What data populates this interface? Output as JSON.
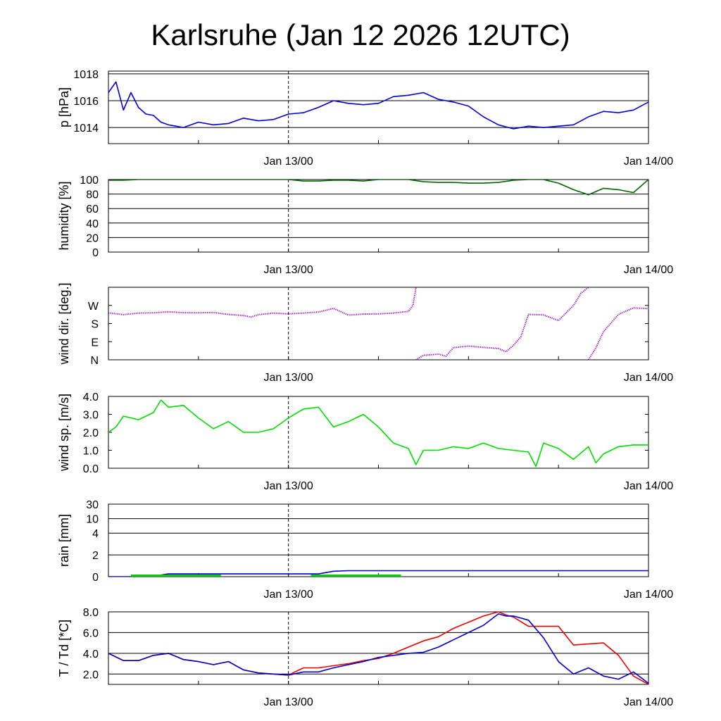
{
  "title": "Karlsruhe (Jan 12 2026 12UTC)",
  "chart_data": [
    {
      "id": "pressure",
      "type": "line",
      "ylabel": "p [hPa]",
      "ylim": [
        1012.8,
        1018.2
      ],
      "yticks": [
        {
          "value": 1014,
          "label": "1014"
        },
        {
          "value": 1016,
          "label": "1016"
        },
        {
          "value": 1018,
          "label": "1018"
        }
      ],
      "grid": true,
      "xticks": [
        "Jan 13/00",
        "Jan 14/00"
      ],
      "series": [
        {
          "color": "#0000dd",
          "x": [
            0,
            0.5,
            1,
            1.5,
            2,
            2.5,
            3,
            3.5,
            4,
            4.5,
            5,
            6,
            7,
            8,
            9,
            10,
            11,
            12,
            13,
            14,
            15,
            16,
            17,
            18,
            19,
            20,
            21,
            22,
            23,
            24,
            25,
            26,
            27,
            28,
            29,
            30,
            31,
            32,
            33,
            34,
            35,
            36
          ],
          "y": [
            1016.6,
            1017.4,
            1015.3,
            1016.6,
            1015.5,
            1015.0,
            1014.9,
            1014.4,
            1014.2,
            1014.1,
            1014.0,
            1014.4,
            1014.2,
            1014.3,
            1014.7,
            1014.5,
            1014.6,
            1015.0,
            1015.1,
            1015.5,
            1016.0,
            1015.8,
            1015.7,
            1015.8,
            1016.3,
            1016.4,
            1016.6,
            1016.1,
            1015.9,
            1015.6,
            1014.8,
            1014.2,
            1013.9,
            1014.1,
            1014.0,
            1014.1,
            1014.2,
            1014.8,
            1015.2,
            1015.1,
            1015.3,
            1015.9
          ]
        }
      ]
    },
    {
      "id": "humidity",
      "type": "line",
      "ylabel": "humidity [%]",
      "ylim": [
        0,
        100
      ],
      "yticks": [
        {
          "value": 0,
          "label": "0"
        },
        {
          "value": 20,
          "label": "20"
        },
        {
          "value": 40,
          "label": "40"
        },
        {
          "value": 60,
          "label": "60"
        },
        {
          "value": 80,
          "label": "80"
        },
        {
          "value": 100,
          "label": "100"
        }
      ],
      "grid": true,
      "xticks": [
        "Jan 13/00",
        "Jan 14/00"
      ],
      "series": [
        {
          "color": "#006600",
          "x": [
            0,
            1,
            2,
            3,
            12,
            13,
            14,
            15,
            16,
            17,
            18,
            19,
            20,
            21,
            22,
            23,
            24,
            25,
            26,
            27,
            28,
            29,
            30,
            31,
            32,
            33,
            34,
            35,
            36
          ],
          "y": [
            99,
            99,
            100,
            100,
            100,
            98,
            98,
            99,
            99,
            98,
            100,
            100,
            100,
            97,
            96,
            96,
            95,
            95,
            96,
            99,
            100,
            100,
            95,
            86,
            79,
            88,
            86,
            82,
            100
          ]
        }
      ]
    },
    {
      "id": "wind-direction",
      "type": "scatter",
      "ylabel": "wind dir. [deg.]",
      "ylim": [
        0,
        360
      ],
      "yticks": [
        {
          "value": 0,
          "label": "N"
        },
        {
          "value": 90,
          "label": "E"
        },
        {
          "value": 180,
          "label": "S"
        },
        {
          "value": 270,
          "label": "W"
        }
      ],
      "grid": false,
      "xticks": [
        "Jan 13/00",
        "Jan 14/00"
      ],
      "series": [
        {
          "color": "#9900cc",
          "segments": [
            {
              "x": [
                0,
                1,
                2,
                3,
                4,
                5,
                6,
                7,
                8,
                9,
                9.5,
                10,
                11,
                12,
                13,
                14,
                15,
                16,
                17,
                18,
                19,
                20,
                20.3,
                20.5
              ],
              "y": [
                233,
                224,
                232,
                233,
                238,
                234,
                233,
                235,
                225,
                220,
                212,
                224,
                232,
                228,
                232,
                237,
                255,
                222,
                227,
                228,
                232,
                240,
                270,
                360
              ]
            },
            {
              "x": [
                20.5,
                21,
                22,
                22.5,
                23,
                24,
                25,
                26,
                26.5,
                27,
                27.5,
                27.7,
                28,
                29,
                30,
                31,
                31.5,
                32
              ],
              "y": [
                0,
                22,
                28,
                18,
                60,
                68,
                62,
                56,
                40,
                72,
                115,
                160,
                225,
                223,
                195,
                270,
                330,
                360
              ]
            },
            {
              "x": [
                32,
                32.5,
                33,
                34,
                35,
                36
              ],
              "y": [
                0,
                60,
                140,
                225,
                258,
                254
              ]
            }
          ]
        }
      ]
    },
    {
      "id": "wind-speed",
      "type": "line",
      "ylabel": "wind sp. [m/s]",
      "ylim": [
        0,
        4
      ],
      "yticks": [
        {
          "value": 0,
          "label": "0.0"
        },
        {
          "value": 1,
          "label": "1.0"
        },
        {
          "value": 2,
          "label": "2.0"
        },
        {
          "value": 3,
          "label": "3.0"
        },
        {
          "value": 4,
          "label": "4.0"
        }
      ],
      "grid": false,
      "xticks": [
        "Jan 13/00",
        "Jan 14/00"
      ],
      "series": [
        {
          "color": "#00dd00",
          "x": [
            0,
            0.5,
            1,
            2,
            3,
            3.5,
            4,
            5,
            6,
            7,
            8,
            9,
            10,
            11,
            12,
            13,
            14,
            15,
            16,
            17,
            18,
            19,
            20,
            20.5,
            21,
            22,
            23,
            24,
            25,
            26,
            27,
            28,
            28.5,
            29,
            30,
            31,
            32,
            32.5,
            33,
            34,
            35,
            36
          ],
          "y": [
            2.0,
            2.3,
            2.9,
            2.7,
            3.1,
            3.8,
            3.4,
            3.5,
            2.8,
            2.2,
            2.6,
            2.0,
            2.0,
            2.2,
            2.8,
            3.3,
            3.4,
            2.3,
            2.6,
            3.0,
            2.3,
            1.4,
            1.1,
            0.2,
            1.0,
            1.0,
            1.2,
            1.1,
            1.4,
            1.1,
            1.0,
            0.9,
            0.1,
            1.4,
            1.1,
            0.5,
            1.2,
            0.3,
            0.8,
            1.2,
            1.3,
            1.3
          ]
        }
      ]
    },
    {
      "id": "rain",
      "type": "line",
      "ylabel": "rain [mm]",
      "ylim": [
        0,
        30
      ],
      "yscale": "nonlinear",
      "yticks": [
        {
          "value": 0,
          "label": "0"
        },
        {
          "value": 2,
          "label": "2"
        },
        {
          "value": 4,
          "label": "4"
        },
        {
          "value": 10,
          "label": "10"
        },
        {
          "value": 30,
          "label": "30"
        }
      ],
      "grid": true,
      "xticks": [
        "Jan 13/00",
        "Jan 14/00"
      ],
      "series": [
        {
          "color": "#0000cc",
          "x": [
            0,
            1.5,
            2.5,
            3.5,
            4,
            14,
            15,
            16,
            36
          ],
          "y": [
            0,
            0,
            0.05,
            0.15,
            0.25,
            0.25,
            0.5,
            0.55,
            0.55
          ]
        },
        {
          "color": "#00cc00",
          "x": [
            1.5,
            7.5,
            13.5,
            19.5
          ],
          "y": [
            0.04,
            0.04,
            0.04,
            0.04
          ],
          "style": "bars"
        }
      ]
    },
    {
      "id": "temperature",
      "type": "line",
      "ylabel": "T / Td [*C]",
      "ylim": [
        1.0,
        8.0
      ],
      "yticks": [
        {
          "value": 2,
          "label": "2.0"
        },
        {
          "value": 4,
          "label": "4.0"
        },
        {
          "value": 6,
          "label": "6.0"
        },
        {
          "value": 8,
          "label": "8.0"
        }
      ],
      "grid": true,
      "xticks": [
        "Jan 13/00",
        "Jan 14/00"
      ],
      "series": [
        {
          "color": "#ee0000",
          "x": [
            0,
            1,
            2,
            3,
            4,
            5,
            6,
            7,
            8,
            9,
            10,
            11,
            12,
            13,
            14,
            15,
            16,
            17,
            18,
            19,
            20,
            21,
            22,
            23,
            24,
            25,
            26,
            26.5,
            27,
            28,
            29,
            30,
            31,
            32,
            33,
            34,
            35,
            36
          ],
          "y": [
            4.0,
            3.3,
            3.3,
            3.8,
            4.0,
            3.4,
            3.2,
            2.9,
            3.2,
            2.4,
            2.1,
            2.0,
            1.9,
            2.6,
            2.6,
            2.8,
            3.0,
            3.3,
            3.5,
            4.0,
            4.6,
            5.2,
            5.6,
            6.4,
            7.0,
            7.6,
            8.0,
            7.7,
            7.5,
            6.6,
            6.6,
            6.6,
            4.8,
            4.9,
            5.0,
            3.8,
            1.8,
            1.0
          ]
        },
        {
          "color": "#0000cc",
          "x": [
            0,
            1,
            2,
            3,
            4,
            5,
            6,
            7,
            8,
            9,
            10,
            11,
            12,
            13,
            14,
            15,
            16,
            17,
            18,
            19,
            20,
            21,
            22,
            23,
            24,
            25,
            26,
            26.5,
            27,
            28,
            29,
            30,
            31,
            32,
            33,
            34,
            35,
            36
          ],
          "y": [
            4.0,
            3.3,
            3.3,
            3.8,
            4.0,
            3.4,
            3.2,
            2.9,
            3.2,
            2.4,
            2.1,
            2.0,
            1.9,
            2.2,
            2.2,
            2.6,
            2.9,
            3.2,
            3.6,
            3.8,
            4.0,
            4.1,
            4.6,
            5.3,
            6.0,
            6.7,
            7.8,
            7.6,
            7.6,
            7.2,
            5.5,
            3.2,
            2.0,
            2.6,
            1.8,
            1.5,
            2.2,
            1.1
          ]
        }
      ]
    }
  ]
}
